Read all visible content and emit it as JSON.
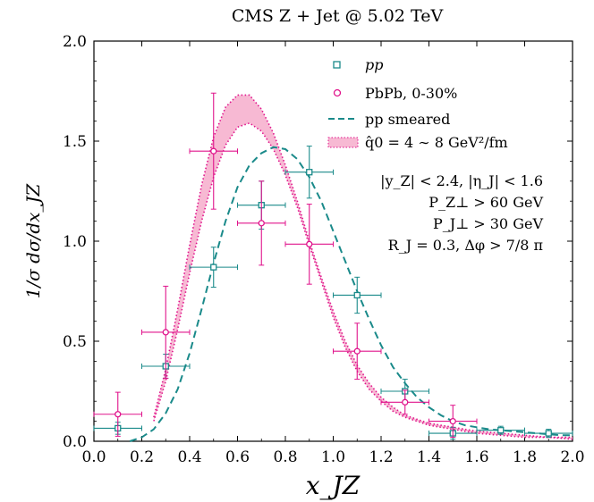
{
  "chart_data": {
    "type": "scatter",
    "title": "CMS Z + Jet @ 5.02 TeV",
    "xlabel": "x_JZ",
    "ylabel": "1/σ dσ/dx_JZ",
    "xlim": [
      0.0,
      2.0
    ],
    "ylim": [
      0.0,
      2.0
    ],
    "x_ticks": [
      "0.0",
      "0.2",
      "0.4",
      "0.6",
      "0.8",
      "1.0",
      "1.2",
      "1.4",
      "1.6",
      "1.8",
      "2.0"
    ],
    "y_ticks": [
      "0.0",
      "0.5",
      "1.0",
      "1.5",
      "2.0"
    ],
    "grid": false,
    "legend_position": "top-right",
    "colors": {
      "pp": "#1a8a8a",
      "pbpb": "#e0148c",
      "band": "#f7b9d3"
    },
    "series": [
      {
        "name": "pp",
        "kind": "points",
        "marker": "square",
        "points": [
          {
            "x": 0.1,
            "y": 0.065,
            "xerr": 0.1,
            "yerr": 0.03
          },
          {
            "x": 0.3,
            "y": 0.375,
            "xerr": 0.1,
            "yerr": 0.06
          },
          {
            "x": 0.5,
            "y": 0.87,
            "xerr": 0.1,
            "yerr": 0.1
          },
          {
            "x": 0.7,
            "y": 1.18,
            "xerr": 0.1,
            "yerr": 0.12
          },
          {
            "x": 0.9,
            "y": 1.345,
            "xerr": 0.1,
            "yerr": 0.13
          },
          {
            "x": 1.1,
            "y": 0.73,
            "xerr": 0.1,
            "yerr": 0.09
          },
          {
            "x": 1.3,
            "y": 0.25,
            "xerr": 0.1,
            "yerr": 0.06
          },
          {
            "x": 1.5,
            "y": 0.04,
            "xerr": 0.1,
            "yerr": 0.03
          },
          {
            "x": 1.7,
            "y": 0.055,
            "xerr": 0.1,
            "yerr": 0.02
          },
          {
            "x": 1.9,
            "y": 0.04,
            "xerr": 0.1,
            "yerr": 0.02
          }
        ]
      },
      {
        "name": "PbPb, 0-30%",
        "kind": "points",
        "marker": "circle",
        "points": [
          {
            "x": 0.1,
            "y": 0.135,
            "xerr": 0.1,
            "yerr": 0.11
          },
          {
            "x": 0.3,
            "y": 0.545,
            "xerr": 0.1,
            "yerr": 0.23
          },
          {
            "x": 0.5,
            "y": 1.45,
            "xerr": 0.1,
            "yerr": 0.29
          },
          {
            "x": 0.7,
            "y": 1.09,
            "xerr": 0.1,
            "yerr": 0.21
          },
          {
            "x": 0.9,
            "y": 0.985,
            "xerr": 0.1,
            "yerr": 0.2
          },
          {
            "x": 1.1,
            "y": 0.45,
            "xerr": 0.1,
            "yerr": 0.14
          },
          {
            "x": 1.3,
            "y": 0.195,
            "xerr": 0.1,
            "yerr": 0.06
          },
          {
            "x": 1.5,
            "y": 0.1,
            "xerr": 0.1,
            "yerr": 0.08
          }
        ]
      },
      {
        "name": "pp smeared",
        "kind": "line",
        "style": "dashed",
        "x": [
          0.15,
          0.2,
          0.25,
          0.3,
          0.35,
          0.4,
          0.45,
          0.5,
          0.55,
          0.6,
          0.65,
          0.7,
          0.75,
          0.8,
          0.85,
          0.9,
          0.95,
          1.0,
          1.05,
          1.1,
          1.15,
          1.2,
          1.25,
          1.3,
          1.35,
          1.4,
          1.45,
          1.5,
          1.55,
          1.6,
          1.65,
          1.7,
          1.75,
          1.8,
          1.85,
          1.9,
          1.95,
          2.0
        ],
        "y": [
          0.0,
          0.02,
          0.06,
          0.14,
          0.26,
          0.44,
          0.66,
          0.89,
          1.1,
          1.27,
          1.38,
          1.44,
          1.47,
          1.46,
          1.41,
          1.32,
          1.2,
          1.05,
          0.9,
          0.75,
          0.61,
          0.48,
          0.37,
          0.29,
          0.22,
          0.17,
          0.13,
          0.1,
          0.08,
          0.07,
          0.06,
          0.055,
          0.05,
          0.045,
          0.04,
          0.035,
          0.03,
          0.03
        ]
      },
      {
        "name": "q̂0 = 4 ∼ 8 GeV²/fm",
        "kind": "band",
        "x": [
          0.25,
          0.3,
          0.35,
          0.4,
          0.45,
          0.5,
          0.55,
          0.6,
          0.65,
          0.7,
          0.75,
          0.8,
          0.85,
          0.9,
          0.95,
          1.0,
          1.05,
          1.1,
          1.15,
          1.2,
          1.25,
          1.3,
          1.35,
          1.4,
          1.45,
          1.5,
          1.55,
          1.6,
          1.7,
          1.8,
          1.9,
          2.0
        ],
        "upper": [
          0.12,
          0.36,
          0.66,
          0.98,
          1.28,
          1.52,
          1.67,
          1.73,
          1.73,
          1.66,
          1.54,
          1.38,
          1.2,
          1.0,
          0.82,
          0.65,
          0.5,
          0.38,
          0.29,
          0.22,
          0.17,
          0.13,
          0.11,
          0.09,
          0.08,
          0.07,
          0.06,
          0.05,
          0.04,
          0.03,
          0.02,
          0.02
        ],
        "lower": [
          0.1,
          0.3,
          0.56,
          0.84,
          1.1,
          1.32,
          1.48,
          1.57,
          1.59,
          1.55,
          1.46,
          1.33,
          1.17,
          0.98,
          0.8,
          0.62,
          0.47,
          0.35,
          0.26,
          0.2,
          0.15,
          0.12,
          0.1,
          0.08,
          0.07,
          0.06,
          0.05,
          0.04,
          0.03,
          0.02,
          0.02,
          0.01
        ]
      }
    ],
    "annotations": [
      "|y_Z| < 2.4, |η_J| < 1.6",
      "P_Z⊥ > 60 GeV",
      "P_J⊥ > 30 GeV",
      "R_J = 0.3, Δφ > 7/8 π"
    ]
  }
}
